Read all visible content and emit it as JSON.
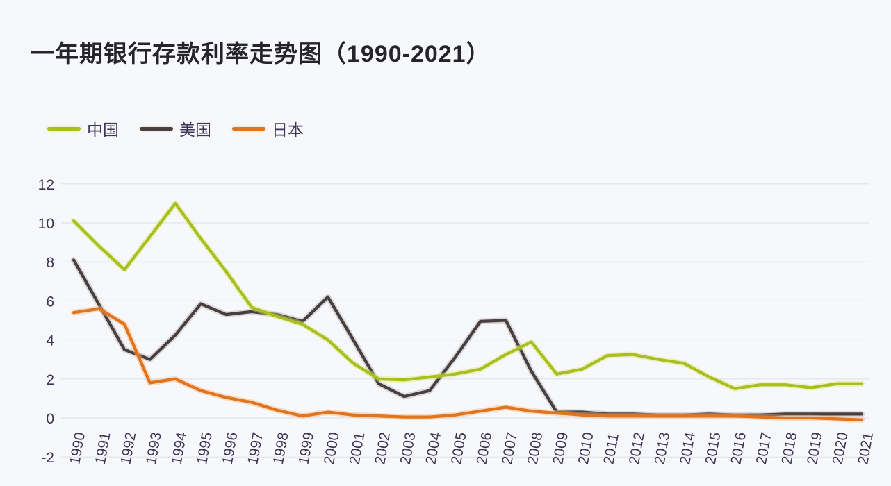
{
  "title": "一年期银行存款利率走势图（1990-2021）",
  "colors": {
    "background": "#f7f8fb",
    "gridline": "#e0e3e9",
    "title_text": "#25232c",
    "axis_text": "#3e3455",
    "china_line": "#a9bf1e",
    "us_line": "#48403f",
    "japan_line": "#e1741d"
  },
  "chart_data": {
    "type": "line",
    "title": "一年期银行存款利率走势图（1990-2021）",
    "xlabel": "",
    "ylabel": "",
    "ylim": [
      -2,
      12
    ],
    "yticks": [
      12,
      10,
      8,
      6,
      4,
      2,
      0,
      -2
    ],
    "grid": "horizontal",
    "legend_position": "top-left",
    "categories": [
      "1990",
      "1991",
      "1992",
      "1993",
      "1994",
      "1995",
      "1996",
      "1997",
      "1998",
      "1999",
      "2000",
      "2001",
      "2002",
      "2003",
      "2004",
      "2005",
      "2006",
      "2007",
      "2008",
      "2009",
      "2010",
      "2011",
      "2012",
      "2013",
      "2014",
      "2015",
      "2016",
      "2017",
      "2018",
      "2019",
      "2020",
      "2021"
    ],
    "series": [
      {
        "name": "中国",
        "color": "#a9bf1e",
        "glow": "#dce878",
        "values": [
          10.1,
          8.8,
          7.6,
          9.3,
          11.0,
          9.2,
          7.5,
          5.67,
          5.2,
          4.8,
          4.0,
          2.8,
          2.0,
          1.95,
          2.1,
          2.25,
          2.5,
          3.25,
          3.9,
          2.25,
          2.5,
          3.2,
          3.25,
          3.0,
          2.8,
          2.1,
          1.5,
          1.7,
          1.7,
          1.55,
          1.75,
          1.75
        ]
      },
      {
        "name": "美国",
        "color": "#48403f",
        "glow": "#b3a8aa",
        "values": [
          8.1,
          5.8,
          3.5,
          3.0,
          4.25,
          5.85,
          5.3,
          5.45,
          5.3,
          4.95,
          6.2,
          4.0,
          1.75,
          1.1,
          1.4,
          3.1,
          4.95,
          5.0,
          2.4,
          0.3,
          0.3,
          0.2,
          0.2,
          0.15,
          0.15,
          0.2,
          0.15,
          0.15,
          0.2,
          0.2,
          0.2,
          0.2
        ]
      },
      {
        "name": "日本",
        "color": "#e1741d",
        "glow": "#f5b67c",
        "values": [
          5.4,
          5.6,
          4.8,
          1.8,
          2.0,
          1.4,
          1.05,
          0.8,
          0.4,
          0.1,
          0.3,
          0.15,
          0.1,
          0.05,
          0.05,
          0.15,
          0.35,
          0.55,
          0.35,
          0.25,
          0.15,
          0.1,
          0.1,
          0.1,
          0.1,
          0.1,
          0.1,
          0.05,
          0.0,
          0.0,
          -0.05,
          -0.1
        ]
      }
    ]
  }
}
